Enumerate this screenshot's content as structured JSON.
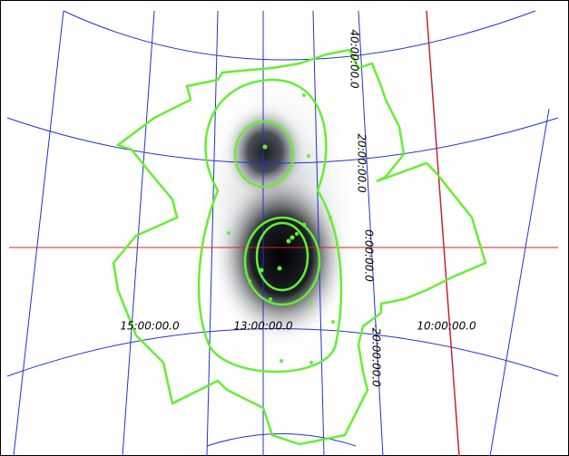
{
  "grid_labels": {
    "declination": [
      "40:00:00.0",
      "20:00:00.0",
      "0:00:00.0",
      "-20:00:00.0"
    ],
    "right_ascension": [
      "15:00:00.0",
      "13:00:00.0",
      "10:00:00.0"
    ]
  }
}
